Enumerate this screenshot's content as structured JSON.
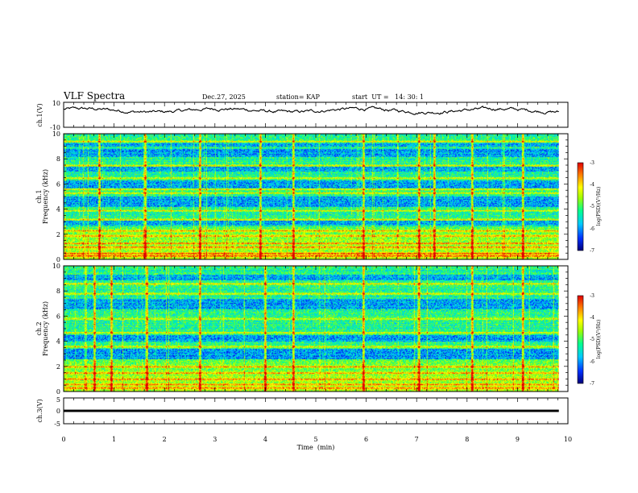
{
  "header": {
    "title": "VLF Spectra",
    "date": "Dec.27, 2025",
    "station": "station= KAP",
    "start_time": "start  UT =   14: 30: 1"
  },
  "chart_data": [
    {
      "type": "line",
      "name": "ch1-waveform",
      "ylabel": "ch.1(V)",
      "ylim": [
        -10,
        10
      ],
      "y_ticks": [
        "10",
        "-10"
      ],
      "xlim": [
        0,
        10
      ],
      "x_end": 9.82,
      "y_mean": 3.5,
      "y_amplitude": 2.5
    },
    {
      "type": "heatmap",
      "name": "ch1-spectrogram",
      "ylabel_lines": [
        "ch.1",
        "Frequency (kHz)"
      ],
      "ylim": [
        0,
        10
      ],
      "y_ticks": [
        "0",
        "2",
        "4",
        "6",
        "8",
        "10"
      ],
      "xlim": [
        0,
        10
      ],
      "x_end": 9.82,
      "zlim": [
        -7,
        -3
      ],
      "colorbar_label": "log(PSD)(V²/Hz)",
      "colorbar_ticks": [
        "-3",
        "-4",
        "-5",
        "-6",
        "-7"
      ],
      "bright_bands_khz": [
        0.3,
        0.5,
        1.0,
        1.3,
        1.9,
        2.3,
        3.2,
        3.9,
        5.3,
        5.6,
        6.5,
        7.5,
        9.4
      ],
      "quiet_bands_khz": [
        [
          2.7,
          3.1
        ],
        [
          4.2,
          5.0
        ],
        [
          5.7,
          6.3
        ],
        [
          7.0,
          7.4
        ],
        [
          8.2,
          8.8
        ],
        [
          9.0,
          9.3
        ]
      ],
      "strong_bursts_min": [
        0.7,
        1.62,
        2.7,
        3.9,
        4.55,
        5.95,
        7.05,
        7.35,
        8.1,
        9.1
      ]
    },
    {
      "type": "heatmap",
      "name": "ch2-spectrogram",
      "ylabel_lines": [
        "ch.2",
        "Frequency (kHz)"
      ],
      "ylim": [
        0,
        10
      ],
      "y_ticks": [
        "0",
        "2",
        "4",
        "6",
        "8",
        "10"
      ],
      "xlim": [
        0,
        10
      ],
      "x_end": 9.82,
      "zlim": [
        -7,
        -3
      ],
      "colorbar_label": "log(PSD)(V²/Hz)",
      "colorbar_ticks": [
        "-3",
        "-4",
        "-5",
        "-6",
        "-7"
      ],
      "bright_bands_khz": [
        0.3,
        0.6,
        1.0,
        1.5,
        2.0,
        3.6,
        4.7,
        5.8,
        7.8,
        8.6
      ],
      "quiet_bands_khz": [
        [
          2.6,
          3.4
        ],
        [
          4.0,
          4.5
        ],
        [
          6.6,
          7.4
        ],
        [
          8.9,
          9.3
        ]
      ],
      "strong_bursts_min": [
        0.6,
        0.95,
        1.65,
        2.7,
        4.0,
        4.55,
        5.95,
        7.05,
        8.1,
        9.1
      ]
    },
    {
      "type": "line",
      "name": "ch3-waveform",
      "ylabel": "ch.3(V)",
      "ylim": [
        -5,
        5
      ],
      "y_ticks": [
        "5",
        "0",
        "-5"
      ],
      "xlim": [
        0,
        10
      ],
      "x_end": 9.82,
      "level": 0,
      "band_half_width": 0.45
    }
  ],
  "x_axis": {
    "label": "Time  (min)",
    "ticks": [
      "0",
      "1",
      "2",
      "3",
      "4",
      "5",
      "6",
      "7",
      "8",
      "9",
      "10"
    ]
  },
  "colormap": [
    "#00007a",
    "#0030ff",
    "#00c8ff",
    "#00ff90",
    "#a0ff00",
    "#ffff00",
    "#ff8000",
    "#e00000"
  ]
}
